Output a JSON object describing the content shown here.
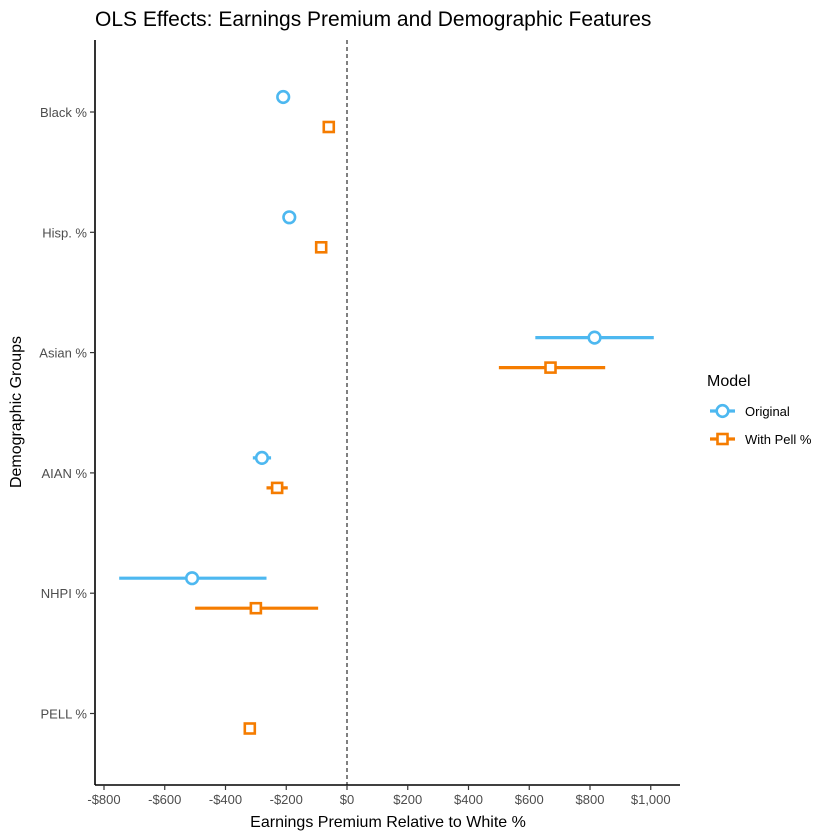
{
  "chart_data": {
    "type": "scatter",
    "title": "OLS Effects: Earnings Premium and Demographic Features",
    "xlabel": "Earnings Premium Relative to White %",
    "ylabel": "Demographic Groups",
    "xlim": [
      -820,
      1100
    ],
    "x_ticks": [
      -800,
      -600,
      -400,
      -200,
      0,
      200,
      400,
      600,
      800,
      1000
    ],
    "x_tick_labels": [
      "-$800",
      "-$600",
      "-$400",
      "-$200",
      "$0",
      "$200",
      "$400",
      "$600",
      "$800",
      "$1,000"
    ],
    "categories": [
      "Black %",
      "Hisp. %",
      "Asian %",
      "AIAN %",
      "NHPI %",
      "PELL %"
    ],
    "reference_line": {
      "x": 0,
      "style": "dashed"
    },
    "grid": false,
    "legend": {
      "title": "Model",
      "position": "right"
    },
    "series": [
      {
        "name": "Original",
        "color": "#4db8f0",
        "marker": "circle",
        "points": [
          {
            "category": "Black %",
            "estimate": -210,
            "low": -210,
            "high": -210
          },
          {
            "category": "Hisp. %",
            "estimate": -190,
            "low": -190,
            "high": -190
          },
          {
            "category": "Asian %",
            "estimate": 815,
            "low": 620,
            "high": 1010
          },
          {
            "category": "AIAN %",
            "estimate": -280,
            "low": -310,
            "high": -250
          },
          {
            "category": "NHPI %",
            "estimate": -510,
            "low": -750,
            "high": -265
          }
        ]
      },
      {
        "name": "With Pell %",
        "color": "#f57c00",
        "marker": "square",
        "points": [
          {
            "category": "Black %",
            "estimate": -60,
            "low": -60,
            "high": -60
          },
          {
            "category": "Hisp. %",
            "estimate": -85,
            "low": -85,
            "high": -85
          },
          {
            "category": "Asian %",
            "estimate": 670,
            "low": 500,
            "high": 850
          },
          {
            "category": "AIAN %",
            "estimate": -230,
            "low": -265,
            "high": -195
          },
          {
            "category": "NHPI %",
            "estimate": -300,
            "low": -500,
            "high": -95
          },
          {
            "category": "PELL %",
            "estimate": -320,
            "low": -330,
            "high": -310
          }
        ]
      }
    ]
  }
}
